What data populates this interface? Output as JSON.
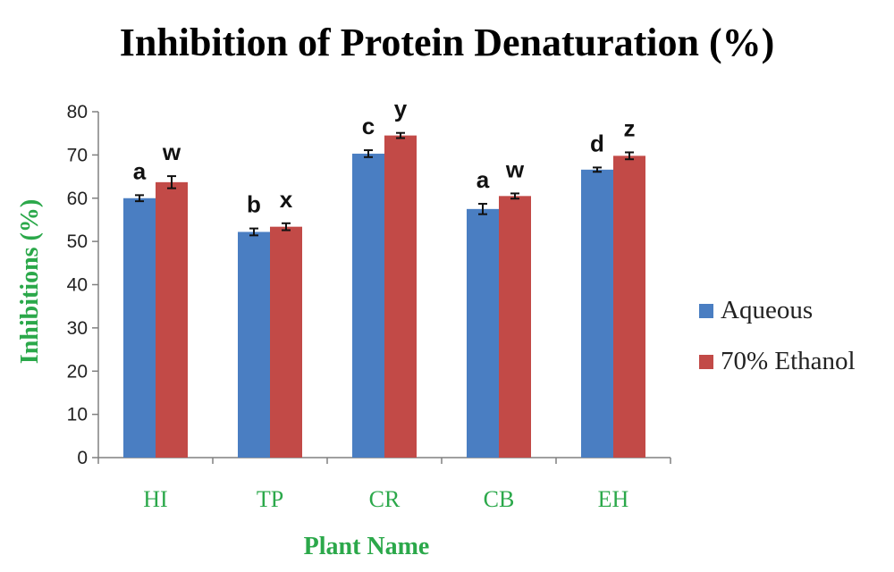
{
  "chart_data": {
    "type": "bar",
    "title": "Inhibition of Protein Denaturation (%)",
    "xlabel": "Plant Name",
    "ylabel": "Inhibitions (%)",
    "ylim": [
      0,
      80
    ],
    "yticks": [
      0,
      10,
      20,
      30,
      40,
      50,
      60,
      70,
      80
    ],
    "categories": [
      "HI",
      "TP",
      "CR",
      "CB",
      "EH"
    ],
    "series": [
      {
        "name": "Aqueous",
        "color": "#4A7EC2",
        "values": [
          60.0,
          52.2,
          70.3,
          57.5,
          66.6
        ],
        "errors": [
          0.7,
          0.8,
          0.8,
          1.2,
          0.5
        ],
        "labels": [
          "a",
          "b",
          "c",
          "a",
          "d"
        ]
      },
      {
        "name": "70% Ethanol",
        "color": "#C24A47",
        "values": [
          63.7,
          53.4,
          74.5,
          60.5,
          69.8
        ],
        "errors": [
          1.4,
          0.8,
          0.6,
          0.6,
          0.8
        ],
        "labels": [
          "w",
          "x",
          "y",
          "w",
          "z"
        ]
      }
    ],
    "legend_position": "right",
    "grid": false,
    "label_color": "#2BA84A"
  }
}
